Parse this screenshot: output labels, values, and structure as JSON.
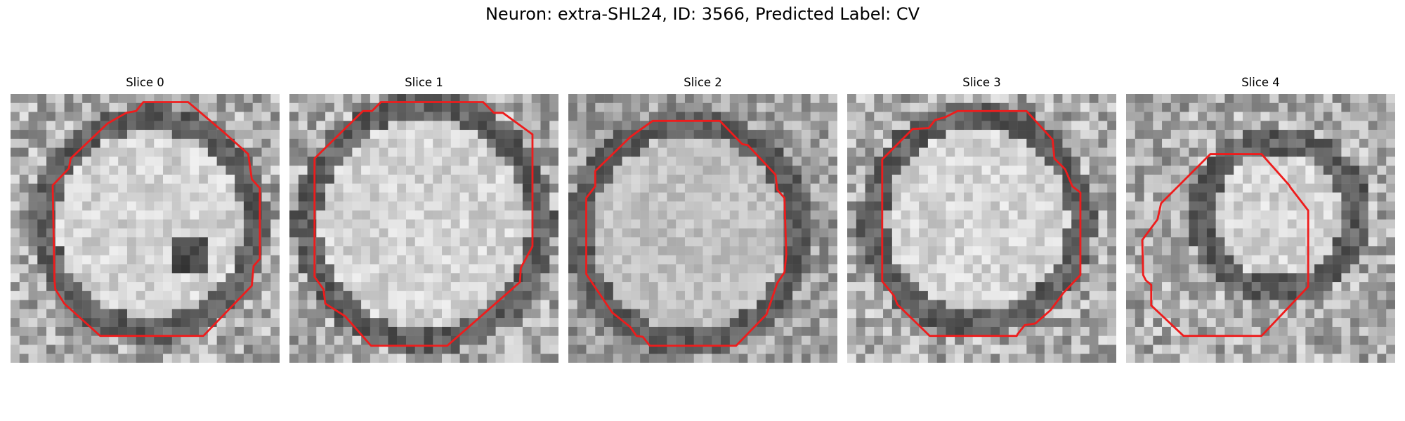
{
  "figure": {
    "title": "Neuron: extra-SHL24, ID: 3566, Predicted Label: CV"
  },
  "panels": [
    {
      "title": "Slice 0",
      "seed": 11,
      "contour_color": "#ee1c1c"
    },
    {
      "title": "Slice 1",
      "seed": 23,
      "contour_color": "#ee1c1c"
    },
    {
      "title": "Slice 2",
      "seed": 37,
      "contour_color": "#ee1c1c"
    },
    {
      "title": "Slice 3",
      "seed": 41,
      "contour_color": "#ee1c1c"
    },
    {
      "title": "Slice 4",
      "seed": 53,
      "contour_color": "#ee1c1c"
    }
  ]
}
